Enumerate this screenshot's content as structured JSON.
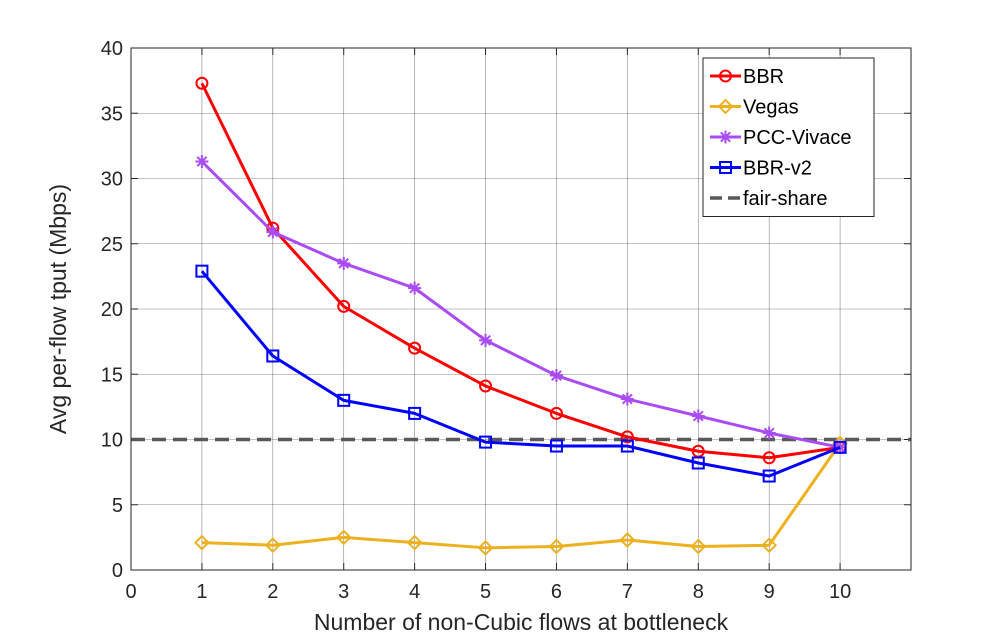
{
  "chart_data": {
    "type": "line",
    "title": "",
    "xlabel": "Number of non-Cubic flows at bottleneck",
    "ylabel": "Avg per-flow tput (Mbps)",
    "xlim": [
      0,
      11
    ],
    "ylim": [
      0,
      40
    ],
    "xticks": [
      0,
      1,
      2,
      3,
      4,
      5,
      6,
      7,
      8,
      9,
      10
    ],
    "yticks": [
      0,
      5,
      10,
      15,
      20,
      25,
      30,
      35,
      40
    ],
    "grid": true,
    "legend_position": "top-right",
    "x": [
      1,
      2,
      3,
      4,
      5,
      6,
      7,
      8,
      9,
      10
    ],
    "series": [
      {
        "name": "BBR",
        "color": "#ff0000",
        "marker": "circle",
        "values": [
          37.3,
          26.2,
          20.2,
          17.0,
          14.1,
          12.0,
          10.2,
          9.1,
          8.6,
          9.4
        ]
      },
      {
        "name": "Vegas",
        "color": "#edb120",
        "marker": "diamond",
        "values": [
          2.1,
          1.9,
          2.5,
          2.1,
          1.7,
          1.8,
          2.3,
          1.8,
          1.9,
          9.7
        ]
      },
      {
        "name": "PCC-Vivace",
        "color": "#a94cf5",
        "marker": "asterisk",
        "values": [
          31.3,
          25.9,
          23.5,
          21.6,
          17.6,
          14.9,
          13.1,
          11.8,
          10.5,
          9.4
        ]
      },
      {
        "name": "BBR-v2",
        "color": "#0000ff",
        "marker": "square",
        "values": [
          22.9,
          16.4,
          13.0,
          12.0,
          9.8,
          9.5,
          9.5,
          8.2,
          7.2,
          9.4
        ]
      }
    ],
    "reference_lines": [
      {
        "name": "fair-share",
        "y": 10,
        "color": "#595959",
        "style": "dashed"
      }
    ]
  }
}
